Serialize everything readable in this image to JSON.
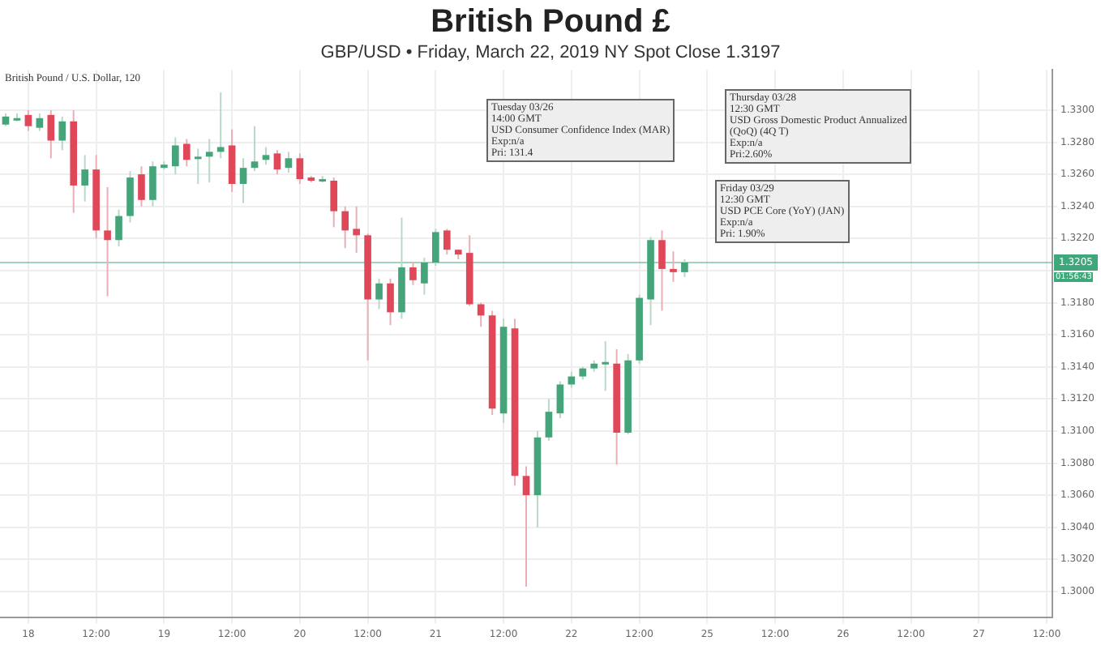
{
  "chart_data": {
    "type": "candlestick",
    "title": "British Pound £",
    "subtitle": "GBP/USD • Friday, March 22, 2019 NY Spot Close 1.3197",
    "annotations": [
      "British Pound / U.S. Dollar, 120",
      "Tuesday 03/26\n14:00 GMT\nUSD Consumer Confidence Index (MAR)\nExp:n/a\nPri: 131.4",
      "Thursday 03/28\n12:30 GMT\nUSD Gross Domestic Product Annualized\n(QoQ) (4Q T)\nExp:n/a\nPri:2.60%",
      "Friday 03/29\n12:30 GMT\nUSD PCE Core (YoY) (JAN)\nExp:n/a\nPri: 1.90%",
      "01:56:43"
    ],
    "categories": [
      null,
      null,
      "18",
      null,
      null,
      null,
      null,
      null,
      "12:00",
      null,
      null,
      null,
      null,
      null,
      "19",
      null,
      null,
      null,
      null,
      null,
      "12:00",
      null,
      null,
      null,
      null,
      null,
      "20",
      null,
      null,
      null,
      null,
      null,
      "12:00",
      null,
      null,
      null,
      null,
      null,
      "21",
      null,
      null,
      null,
      null,
      null,
      "12:00",
      null,
      null,
      null,
      null,
      null,
      "22",
      null,
      null,
      null,
      null,
      null,
      "12:00",
      null,
      null,
      null,
      null,
      null,
      "25",
      null,
      null,
      null,
      null,
      null,
      "12:00",
      null,
      null,
      null,
      null,
      null,
      "26",
      null,
      null,
      null,
      null,
      null,
      "12:00",
      null,
      null,
      null,
      null,
      null,
      "27",
      null,
      null,
      null,
      null,
      null,
      "12:00"
    ],
    "ohlc": [
      [
        1.3291,
        1.3298,
        1.329,
        1.3296
      ],
      [
        1.3295,
        1.3298,
        1.3293,
        1.3295
      ],
      [
        1.3297,
        1.33,
        1.3287,
        1.329
      ],
      [
        1.3289,
        1.3298,
        1.3287,
        1.3295
      ],
      [
        1.3297,
        1.33,
        1.327,
        1.3281
      ],
      [
        1.3281,
        1.3296,
        1.3275,
        1.3293
      ],
      [
        1.3293,
        1.33,
        1.3236,
        1.3253
      ],
      [
        1.3253,
        1.3272,
        1.3243,
        1.3263
      ],
      [
        1.3263,
        1.3272,
        1.322,
        1.3225
      ],
      [
        1.3225,
        1.3252,
        1.3184,
        1.3219
      ],
      [
        1.3219,
        1.3238,
        1.3215,
        1.3234
      ],
      [
        1.3234,
        1.3262,
        1.323,
        1.3258
      ],
      [
        1.326,
        1.3265,
        1.324,
        1.3244
      ],
      [
        1.3244,
        1.3268,
        1.324,
        1.3265
      ],
      [
        1.3264,
        1.3268,
        1.3263,
        1.3266
      ],
      [
        1.3265,
        1.3283,
        1.326,
        1.3278
      ],
      [
        1.3279,
        1.3282,
        1.3265,
        1.3269
      ],
      [
        1.3271,
        1.3276,
        1.3254,
        1.3271
      ],
      [
        1.3271,
        1.3282,
        1.3255,
        1.3274
      ],
      [
        1.3274,
        1.3311,
        1.327,
        1.3277
      ],
      [
        1.3278,
        1.3288,
        1.3249,
        1.3254
      ],
      [
        1.3254,
        1.327,
        1.3242,
        1.3264
      ],
      [
        1.3264,
        1.329,
        1.3262,
        1.3268
      ],
      [
        1.3269,
        1.3277,
        1.3266,
        1.3272
      ],
      [
        1.3273,
        1.3275,
        1.326,
        1.3263
      ],
      [
        1.3264,
        1.3274,
        1.3261,
        1.327
      ],
      [
        1.327,
        1.3273,
        1.3254,
        1.3257
      ],
      [
        1.3258,
        1.3259,
        1.3255,
        1.3256
      ],
      [
        1.3257,
        1.3259,
        1.3255,
        1.3257
      ],
      [
        1.3256,
        1.3258,
        1.3227,
        1.3237
      ],
      [
        1.3237,
        1.324,
        1.3214,
        1.3225
      ],
      [
        1.3226,
        1.324,
        1.3211,
        1.3222
      ],
      [
        1.3222,
        1.3223,
        1.3144,
        1.3182
      ],
      [
        1.3182,
        1.3195,
        1.3176,
        1.3192
      ],
      [
        1.3192,
        1.3195,
        1.3166,
        1.3174
      ],
      [
        1.3174,
        1.3233,
        1.317,
        1.3202
      ],
      [
        1.3202,
        1.3205,
        1.3191,
        1.3194
      ],
      [
        1.3192,
        1.3208,
        1.3185,
        1.3205
      ],
      [
        1.3205,
        1.3226,
        1.3203,
        1.3224
      ],
      [
        1.3225,
        1.3226,
        1.321,
        1.3213
      ],
      [
        1.3213,
        1.3213,
        1.3207,
        1.321
      ],
      [
        1.3211,
        1.3222,
        1.3178,
        1.3179
      ],
      [
        1.3179,
        1.318,
        1.3165,
        1.3172
      ],
      [
        1.3172,
        1.3175,
        1.311,
        1.3114
      ],
      [
        1.3111,
        1.317,
        1.3105,
        1.3165
      ],
      [
        1.3164,
        1.317,
        1.3066,
        1.3072
      ],
      [
        1.3072,
        1.3078,
        1.3003,
        1.306
      ],
      [
        1.306,
        1.31,
        1.304,
        1.3096
      ],
      [
        1.3096,
        1.312,
        1.3094,
        1.3112
      ],
      [
        1.3111,
        1.3131,
        1.3108,
        1.3129
      ],
      [
        1.3129,
        1.3137,
        1.3127,
        1.3134
      ],
      [
        1.3134,
        1.314,
        1.3132,
        1.3139
      ],
      [
        1.3139,
        1.3144,
        1.3137,
        1.3142
      ],
      [
        1.3143,
        1.3156,
        1.3125,
        1.3143
      ],
      [
        1.3142,
        1.3151,
        1.3079,
        1.3099
      ],
      [
        1.3099,
        1.3148,
        1.3098,
        1.3144
      ],
      [
        1.3144,
        1.3185,
        1.3142,
        1.3183
      ],
      [
        1.3182,
        1.3221,
        1.3166,
        1.3219
      ],
      [
        1.3219,
        1.3225,
        1.3175,
        1.3201
      ],
      [
        1.3201,
        1.3212,
        1.3193,
        1.3199
      ],
      [
        1.3199,
        1.3207,
        1.3196,
        1.3205
      ],
      null,
      null,
      null,
      null,
      null,
      null,
      null,
      null,
      null,
      null,
      null,
      null,
      null,
      null,
      null,
      null,
      null,
      null,
      null,
      null,
      null,
      null,
      null,
      null,
      null,
      null,
      null,
      null,
      null,
      null,
      null,
      null
    ],
    "ylim": [
      1.2984,
      1.3325
    ],
    "yticks": [
      {
        "value": 1.3,
        "label": "1.3000"
      },
      {
        "value": 1.302,
        "label": "1.3020"
      },
      {
        "value": 1.304,
        "label": "1.3040"
      },
      {
        "value": 1.306,
        "label": "1.3060"
      },
      {
        "value": 1.308,
        "label": "1.3080"
      },
      {
        "value": 1.31,
        "label": "1.3100"
      },
      {
        "value": 1.312,
        "label": "1.3120"
      },
      {
        "value": 1.314,
        "label": "1.3140"
      },
      {
        "value": 1.316,
        "label": "1.3160"
      },
      {
        "value": 1.318,
        "label": "1.3180"
      },
      {
        "value": 1.32,
        "label": null
      },
      {
        "value": 1.322,
        "label": "1.3220"
      },
      {
        "value": 1.324,
        "label": "1.3240"
      },
      {
        "value": 1.326,
        "label": "1.3260"
      },
      {
        "value": 1.328,
        "label": "1.3280"
      },
      {
        "value": 1.33,
        "label": "1.3300"
      }
    ],
    "ref_lines": [
      {
        "axis": "y",
        "value": 1.3205,
        "label": "1.3205",
        "color": "#3fa87a"
      }
    ],
    "grid": true,
    "legend": false
  }
}
